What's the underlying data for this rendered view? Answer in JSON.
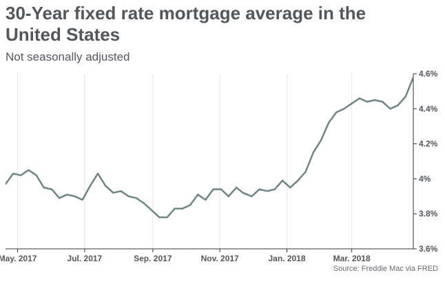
{
  "page": {
    "title": "30-Year fixed rate mortgage average in the United States",
    "subtitle": "Not seasonally adjusted",
    "source": "Source: Freddie Mac via FRED"
  },
  "colors": {
    "line": "#6d8683",
    "grid": "#e4e4e4",
    "axis": "#333333",
    "text": "#53565a"
  },
  "chart_data": {
    "type": "line",
    "title": "30-Year fixed rate mortgage average in the United States",
    "subtitle": "Not seasonally adjusted",
    "xlabel": "",
    "ylabel": "",
    "ylim": [
      3.6,
      4.6
    ],
    "yticks": [
      3.6,
      3.8,
      4.0,
      4.2,
      4.4,
      4.6
    ],
    "ytick_labels": [
      "3.6%",
      "3.8%",
      "4%",
      "4.2%",
      "4.4%",
      "4.6%"
    ],
    "xlim": [
      "2017-04-20",
      "2018-04-26"
    ],
    "xticks": [
      "2017-05-01",
      "2017-07-01",
      "2017-09-01",
      "2017-11-01",
      "2018-01-01",
      "2018-03-01"
    ],
    "xtick_labels": [
      "May. 2017",
      "Jul. 2017",
      "Sep. 2017",
      "Nov. 2017",
      "Jan. 2018",
      "Mar. 2018"
    ],
    "grid": "vertical",
    "legend": "none",
    "series": [
      {
        "x": [
          "2017-04-20",
          "2017-04-27",
          "2017-05-04",
          "2017-05-11",
          "2017-05-18",
          "2017-05-25",
          "2017-06-01",
          "2017-06-08",
          "2017-06-15",
          "2017-06-22",
          "2017-06-29",
          "2017-07-06",
          "2017-07-13",
          "2017-07-20",
          "2017-07-27",
          "2017-08-03",
          "2017-08-10",
          "2017-08-17",
          "2017-08-24",
          "2017-08-31",
          "2017-09-07",
          "2017-09-14",
          "2017-09-21",
          "2017-09-28",
          "2017-10-05",
          "2017-10-12",
          "2017-10-19",
          "2017-10-26",
          "2017-11-02",
          "2017-11-09",
          "2017-11-16",
          "2017-11-22",
          "2017-11-30",
          "2017-12-07",
          "2017-12-14",
          "2017-12-21",
          "2017-12-28",
          "2018-01-04",
          "2018-01-11",
          "2018-01-18",
          "2018-01-25",
          "2018-02-01",
          "2018-02-08",
          "2018-02-15",
          "2018-02-22",
          "2018-03-01",
          "2018-03-08",
          "2018-03-15",
          "2018-03-22",
          "2018-03-29",
          "2018-04-05",
          "2018-04-12",
          "2018-04-19",
          "2018-04-26"
        ],
        "values": [
          3.97,
          4.03,
          4.02,
          4.05,
          4.02,
          3.95,
          3.94,
          3.89,
          3.91,
          3.9,
          3.88,
          3.96,
          4.03,
          3.96,
          3.92,
          3.93,
          3.9,
          3.89,
          3.86,
          3.82,
          3.78,
          3.78,
          3.83,
          3.83,
          3.85,
          3.91,
          3.88,
          3.94,
          3.94,
          3.9,
          3.95,
          3.92,
          3.9,
          3.94,
          3.93,
          3.94,
          3.99,
          3.95,
          3.99,
          4.04,
          4.15,
          4.22,
          4.32,
          4.38,
          4.4,
          4.43,
          4.46,
          4.44,
          4.45,
          4.44,
          4.4,
          4.42,
          4.47,
          4.58
        ]
      }
    ]
  }
}
